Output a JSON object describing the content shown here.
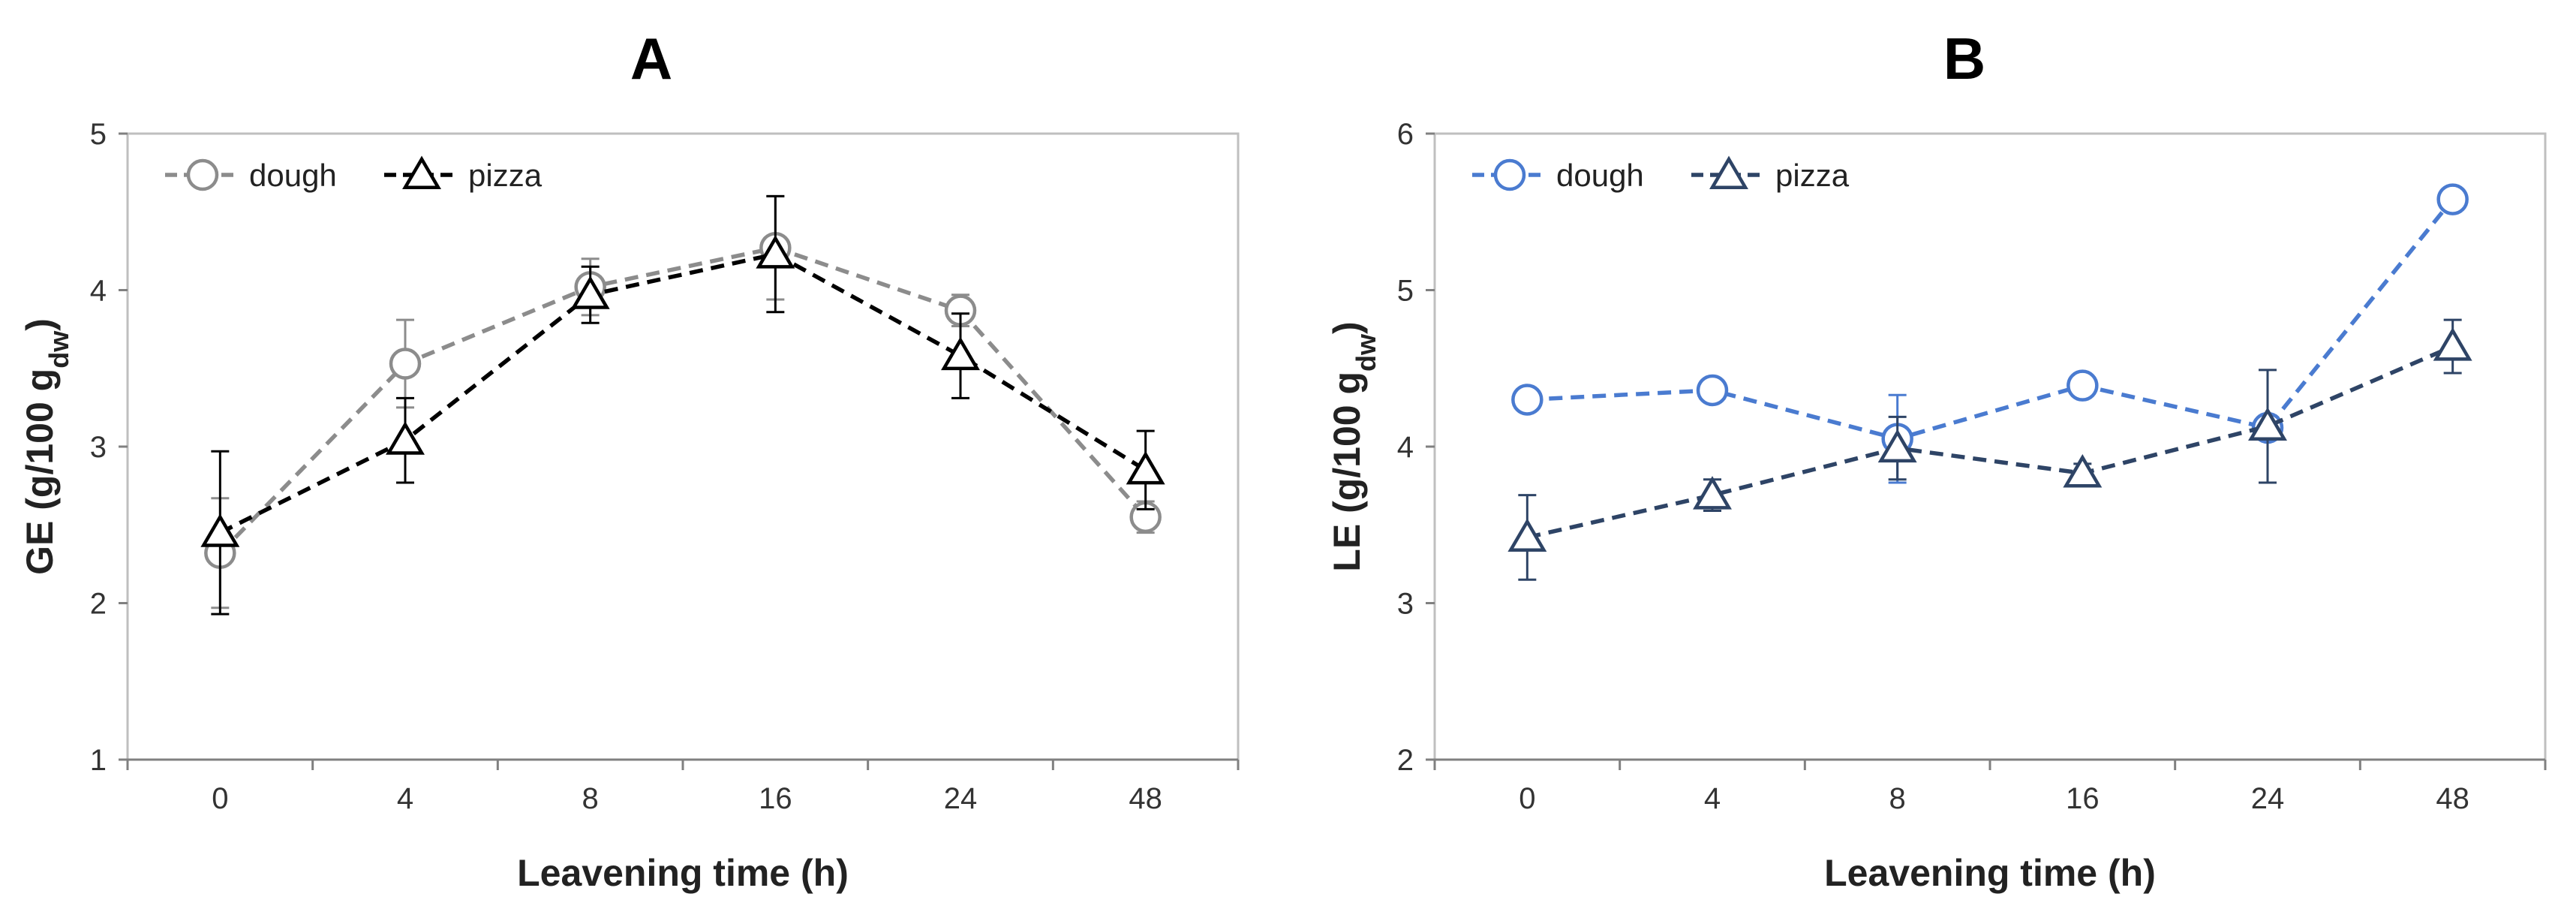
{
  "chart_data": [
    {
      "type": "line",
      "panel": "A",
      "title": "A",
      "xlabel": "Leavening time (h)",
      "ylabel": "GE (g/100 g",
      "ylabel_sub": "dw",
      "ylabel_close": ")",
      "categories": [
        "0",
        "4",
        "8",
        "16",
        "24",
        "48"
      ],
      "ylim": [
        1,
        5
      ],
      "yticks": [
        "1",
        "2",
        "3",
        "4",
        "5"
      ],
      "grid": false,
      "legend_position": "top-left",
      "series": [
        {
          "name": "dough",
          "marker": "circle",
          "color": "#8c8c8c",
          "values": [
            2.32,
            3.53,
            4.02,
            4.27,
            3.87,
            2.55
          ],
          "errors": [
            0.35,
            0.28,
            0.18,
            0.33,
            0.1,
            0.1
          ]
        },
        {
          "name": "pizza",
          "marker": "triangle",
          "color": "#000000",
          "values": [
            2.45,
            3.04,
            3.97,
            4.23,
            3.58,
            2.85
          ],
          "errors": [
            0.52,
            0.27,
            0.18,
            0.37,
            0.27,
            0.25
          ]
        }
      ]
    },
    {
      "type": "line",
      "panel": "B",
      "title": "B",
      "xlabel": "Leavening time (h)",
      "ylabel": "LE (g/100 g",
      "ylabel_sub": "dw",
      "ylabel_close": ")",
      "categories": [
        "0",
        "4",
        "8",
        "16",
        "24",
        "48"
      ],
      "ylim": [
        2,
        6
      ],
      "yticks": [
        "2",
        "3",
        "4",
        "5",
        "6"
      ],
      "grid": false,
      "legend_position": "top-left",
      "series": [
        {
          "name": "dough",
          "marker": "circle",
          "color": "#4a7bd0",
          "values": [
            4.3,
            4.36,
            4.05,
            4.39,
            4.12,
            5.58
          ],
          "errors": [
            0.03,
            0.06,
            0.28,
            0.05,
            0.05,
            0.05
          ]
        },
        {
          "name": "pizza",
          "marker": "triangle",
          "color": "#2e4466",
          "values": [
            3.42,
            3.69,
            3.99,
            3.83,
            4.13,
            4.64
          ],
          "errors": [
            0.27,
            0.1,
            0.2,
            0.06,
            0.36,
            0.17
          ]
        }
      ]
    }
  ]
}
